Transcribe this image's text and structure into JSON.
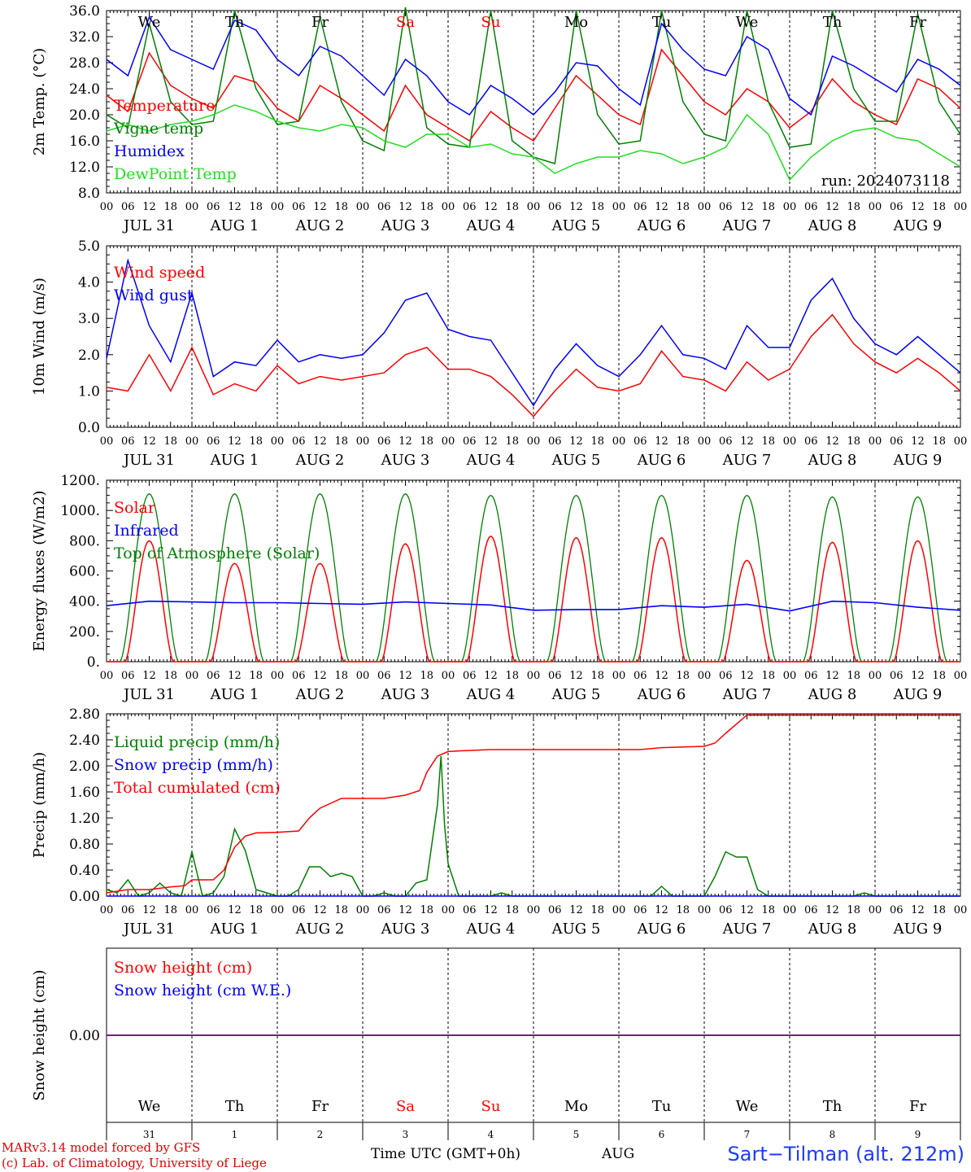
{
  "run_label": "run: 2024073118",
  "days": [
    "We",
    "Th",
    "Fr",
    "Sa",
    "Su",
    "Mo",
    "Tu",
    "We",
    "Th",
    "Fr"
  ],
  "weekend_days": [
    "Sa",
    "Su"
  ],
  "hour_ticks": [
    "00",
    "06",
    "12",
    "18"
  ],
  "date_labels": [
    "JUL 31",
    "AUG  1",
    "AUG  2",
    "AUG  3",
    "AUG  4",
    "AUG  5",
    "AUG  6",
    "AUG  7",
    "AUG  8",
    "AUG  9"
  ],
  "bottom_day_numbers": [
    "31",
    "1",
    "2",
    "3",
    "4",
    "5",
    "6",
    "7",
    "8",
    "9"
  ],
  "footer": {
    "model": "MARv3.14 model forced by GFS",
    "credit": "(c) Lab. of Climatology, University of Liege",
    "xlabel": "Time UTC (GMT+0h)",
    "month": "AUG",
    "site": "Sart−Tilman (alt. 212m)"
  },
  "colors": {
    "red": "#ff0000",
    "green": "#008000",
    "blue": "#0000ff",
    "lightgreen": "#22dd22",
    "purple": "#800080"
  },
  "chart_data": [
    {
      "type": "line",
      "ylabel": "2m Temp. (°C)",
      "ylim": [
        8,
        36
      ],
      "yticks": [
        8,
        12,
        16,
        20,
        24,
        28,
        32,
        36
      ],
      "ytick_labels": [
        "8.0",
        "12.0",
        "16.0",
        "20.0",
        "24.0",
        "28.0",
        "32.0",
        "36.0"
      ],
      "x_unit": "hours since Jul 31 00 UTC",
      "xlim": [
        0,
        240
      ],
      "grid": false,
      "legend_position": "bottom-left",
      "series": [
        {
          "name": "Temperature",
          "color": "#ff0000",
          "x": [
            0,
            6,
            12,
            18,
            24,
            30,
            36,
            42,
            48,
            54,
            60,
            66,
            72,
            78,
            84,
            90,
            96,
            102,
            108,
            114,
            120,
            126,
            132,
            138,
            144,
            150,
            156,
            162,
            168,
            174,
            180,
            186,
            192,
            198,
            204,
            210,
            216,
            222,
            228,
            234,
            240
          ],
          "y": [
            23.0,
            20.5,
            29.5,
            24.5,
            22.5,
            21.0,
            26.0,
            25.0,
            21.0,
            19.0,
            24.5,
            22.5,
            20.0,
            17.5,
            24.5,
            20.0,
            18.0,
            16.0,
            20.5,
            18.0,
            16.0,
            21.0,
            26.0,
            23.0,
            20.0,
            18.5,
            30.0,
            26.0,
            22.0,
            20.0,
            24.0,
            22.0,
            18.0,
            20.5,
            25.5,
            22.0,
            20.0,
            18.5,
            25.5,
            24.0,
            21.0
          ]
        },
        {
          "name": "Vigne temp",
          "color": "#008000",
          "x": [
            0,
            6,
            12,
            18,
            24,
            30,
            36,
            42,
            48,
            54,
            60,
            66,
            72,
            78,
            84,
            90,
            96,
            102,
            108,
            114,
            120,
            126,
            132,
            138,
            144,
            150,
            156,
            162,
            168,
            174,
            180,
            186,
            192,
            198,
            204,
            210,
            216,
            222,
            228,
            234,
            240
          ],
          "y": [
            20.0,
            18.0,
            34.0,
            22.0,
            18.5,
            19.0,
            36.0,
            24.0,
            18.5,
            19.0,
            35.0,
            22.0,
            16.0,
            14.5,
            36.5,
            18.0,
            15.5,
            15.0,
            36.0,
            16.0,
            13.5,
            12.5,
            36.0,
            20.0,
            15.5,
            16.0,
            36.0,
            22.0,
            17.0,
            16.0,
            36.0,
            22.0,
            15.0,
            15.5,
            36.0,
            24.0,
            19.0,
            19.0,
            35.5,
            22.0,
            17.0
          ]
        },
        {
          "name": "Humidex",
          "color": "#0000ff",
          "x": [
            0,
            6,
            12,
            18,
            24,
            30,
            36,
            42,
            48,
            54,
            60,
            66,
            72,
            78,
            84,
            90,
            96,
            102,
            108,
            114,
            120,
            126,
            132,
            138,
            144,
            150,
            156,
            162,
            168,
            174,
            180,
            186,
            192,
            198,
            204,
            210,
            216,
            222,
            228,
            234,
            240
          ],
          "y": [
            28.5,
            26.0,
            35.0,
            30.0,
            28.5,
            27.0,
            34.5,
            33.0,
            28.5,
            26.0,
            30.5,
            29.0,
            26.0,
            23.0,
            28.5,
            26.0,
            22.0,
            20.0,
            24.5,
            22.5,
            20.0,
            23.5,
            28.0,
            27.5,
            24.0,
            21.5,
            34.0,
            30.0,
            27.0,
            26.0,
            32.0,
            30.0,
            22.5,
            20.0,
            29.0,
            27.5,
            25.5,
            23.5,
            28.5,
            27.0,
            24.5
          ]
        },
        {
          "name": "DewPoint Temp",
          "color": "#22dd22",
          "x": [
            0,
            6,
            12,
            18,
            24,
            30,
            36,
            42,
            48,
            54,
            60,
            66,
            72,
            78,
            84,
            90,
            96,
            102,
            108,
            114,
            120,
            126,
            132,
            138,
            144,
            150,
            156,
            162,
            168,
            174,
            180,
            186,
            192,
            198,
            204,
            210,
            216,
            222,
            228,
            234,
            240
          ],
          "y": [
            17.5,
            18.5,
            17.5,
            18.5,
            19.0,
            20.0,
            21.5,
            20.5,
            19.0,
            18.0,
            17.5,
            18.5,
            18.0,
            16.0,
            15.0,
            17.0,
            17.0,
            15.0,
            15.5,
            14.0,
            13.5,
            11.0,
            12.5,
            13.5,
            13.5,
            14.5,
            14.0,
            12.5,
            13.5,
            15.0,
            20.0,
            17.0,
            10.0,
            13.5,
            16.0,
            17.5,
            18.0,
            16.5,
            16.0,
            14.0,
            12.0
          ]
        }
      ]
    },
    {
      "type": "line",
      "ylabel": "10m Wind (m/s)",
      "ylim": [
        0,
        5
      ],
      "yticks": [
        0,
        1,
        2,
        3,
        4,
        5
      ],
      "ytick_labels": [
        "0.0",
        "1.0",
        "2.0",
        "3.0",
        "4.0",
        "5.0"
      ],
      "xlim": [
        0,
        240
      ],
      "grid": false,
      "legend_position": "top-left",
      "series": [
        {
          "name": "Wind speed",
          "color": "#ff0000",
          "x": [
            0,
            6,
            12,
            18,
            24,
            30,
            36,
            42,
            48,
            54,
            60,
            66,
            72,
            78,
            84,
            90,
            96,
            102,
            108,
            114,
            120,
            126,
            132,
            138,
            144,
            150,
            156,
            162,
            168,
            174,
            180,
            186,
            192,
            198,
            204,
            210,
            216,
            222,
            228,
            234,
            240
          ],
          "y": [
            1.1,
            1.0,
            2.0,
            1.0,
            2.2,
            0.9,
            1.2,
            1.0,
            1.7,
            1.2,
            1.4,
            1.3,
            1.4,
            1.5,
            2.0,
            2.2,
            1.6,
            1.6,
            1.4,
            0.9,
            0.3,
            1.0,
            1.6,
            1.1,
            1.0,
            1.2,
            2.1,
            1.4,
            1.3,
            1.0,
            1.8,
            1.3,
            1.6,
            2.5,
            3.1,
            2.3,
            1.8,
            1.5,
            1.9,
            1.5,
            1.0
          ]
        },
        {
          "name": "Wind gust",
          "color": "#0000ff",
          "x": [
            0,
            6,
            12,
            18,
            24,
            30,
            36,
            42,
            48,
            54,
            60,
            66,
            72,
            78,
            84,
            90,
            96,
            102,
            108,
            114,
            120,
            126,
            132,
            138,
            144,
            150,
            156,
            162,
            168,
            174,
            180,
            186,
            192,
            198,
            204,
            210,
            216,
            222,
            228,
            234,
            240
          ],
          "y": [
            1.9,
            4.6,
            2.8,
            1.8,
            3.7,
            1.4,
            1.8,
            1.7,
            2.4,
            1.8,
            2.0,
            1.9,
            2.0,
            2.6,
            3.5,
            3.7,
            2.7,
            2.5,
            2.4,
            1.5,
            0.6,
            1.6,
            2.3,
            1.7,
            1.4,
            2.0,
            2.8,
            2.0,
            1.9,
            1.6,
            2.8,
            2.2,
            2.2,
            3.5,
            4.1,
            3.0,
            2.3,
            2.0,
            2.5,
            2.0,
            1.5
          ]
        }
      ]
    },
    {
      "type": "line",
      "ylabel": "Energy fluxes (W/m2)",
      "ylim": [
        0,
        1200
      ],
      "yticks": [
        0,
        200,
        400,
        600,
        800,
        1000,
        1200
      ],
      "ytick_labels": [
        "0.",
        "200.",
        "400.",
        "600.",
        "800.",
        "1000.",
        "1200."
      ],
      "xlim": [
        0,
        240
      ],
      "grid": false,
      "legend_position": "top-left",
      "solar_peaks": {
        "hour": [
          12,
          36,
          60,
          84,
          108,
          132,
          156,
          180,
          204,
          228
        ],
        "value": [
          800,
          650,
          650,
          780,
          830,
          820,
          820,
          670,
          790,
          800
        ]
      },
      "toa_peaks": {
        "hour": [
          12,
          36,
          60,
          84,
          108,
          132,
          156,
          180,
          204,
          228
        ],
        "value": [
          1110,
          1110,
          1110,
          1110,
          1100,
          1100,
          1100,
          1100,
          1090,
          1090
        ]
      },
      "series": [
        {
          "name": "Solar",
          "color": "#ff0000"
        },
        {
          "name": "Infrared",
          "color": "#0000ff",
          "x": [
            0,
            12,
            24,
            36,
            48,
            60,
            72,
            84,
            96,
            108,
            120,
            132,
            144,
            156,
            168,
            180,
            192,
            204,
            216,
            228,
            240
          ],
          "y": [
            370,
            400,
            395,
            390,
            390,
            385,
            380,
            395,
            385,
            375,
            340,
            345,
            345,
            370,
            360,
            380,
            335,
            400,
            390,
            360,
            340
          ]
        },
        {
          "name": "Top of Atmosphere (Solar)",
          "color": "#008000"
        }
      ]
    },
    {
      "type": "line",
      "ylabel": "Precip (mm/h)",
      "ylim": [
        0,
        2.8
      ],
      "yticks": [
        0,
        0.4,
        0.8,
        1.2,
        1.6,
        2.0,
        2.4,
        2.8
      ],
      "ytick_labels": [
        "0.00",
        "0.40",
        "0.80",
        "1.20",
        "1.60",
        "2.00",
        "2.40",
        "2.80"
      ],
      "xlim": [
        0,
        240
      ],
      "grid": false,
      "legend_position": "top-left",
      "series": [
        {
          "name": "Liquid precip (mm/h)",
          "color": "#008000",
          "x": [
            0,
            3,
            6,
            9,
            12,
            15,
            18,
            21,
            24,
            27,
            30,
            33,
            36,
            39,
            42,
            45,
            48,
            51,
            54,
            57,
            60,
            63,
            66,
            69,
            72,
            75,
            78,
            81,
            84,
            87,
            90,
            93,
            94,
            95,
            96,
            99,
            102,
            105,
            108,
            111,
            114,
            120,
            150,
            153,
            156,
            159,
            162,
            168,
            171,
            174,
            177,
            180,
            183,
            186,
            189,
            192,
            210,
            213,
            216,
            240
          ],
          "y": [
            0.1,
            0.05,
            0.25,
            0.0,
            0.05,
            0.2,
            0.05,
            0.0,
            0.68,
            0.0,
            0.05,
            0.3,
            1.03,
            0.7,
            0.1,
            0.05,
            0.0,
            0.0,
            0.1,
            0.45,
            0.45,
            0.3,
            0.35,
            0.3,
            0.0,
            0.0,
            0.05,
            0.0,
            0.0,
            0.2,
            0.25,
            1.4,
            2.15,
            1.1,
            0.5,
            0.0,
            0.0,
            0.0,
            0.0,
            0.05,
            0.0,
            0.0,
            0.0,
            0.0,
            0.15,
            0.0,
            0.0,
            0.0,
            0.3,
            0.68,
            0.6,
            0.6,
            0.1,
            0.0,
            0.0,
            0.0,
            0.0,
            0.05,
            0.0,
            0.0
          ]
        },
        {
          "name": "Snow precip (mm/h)",
          "color": "#0000ff",
          "x": [
            0,
            240
          ],
          "y": [
            0,
            0
          ]
        },
        {
          "name": "Total cumulated (cm)",
          "color": "#ff0000",
          "x": [
            0,
            6,
            12,
            18,
            22,
            24,
            30,
            33,
            36,
            39,
            42,
            48,
            54,
            57,
            60,
            66,
            72,
            78,
            84,
            88,
            90,
            93,
            96,
            99,
            108,
            114,
            120,
            150,
            156,
            168,
            171,
            174,
            180,
            186,
            192,
            240
          ],
          "y": [
            0.05,
            0.1,
            0.1,
            0.14,
            0.16,
            0.25,
            0.25,
            0.4,
            0.75,
            0.92,
            0.97,
            0.98,
            1.0,
            1.2,
            1.35,
            1.5,
            1.5,
            1.5,
            1.55,
            1.62,
            1.9,
            2.15,
            2.22,
            2.23,
            2.25,
            2.25,
            2.25,
            2.25,
            2.28,
            2.3,
            2.35,
            2.5,
            2.78,
            2.78,
            2.78,
            2.78
          ]
        }
      ]
    },
    {
      "type": "line",
      "ylabel": "Snow height (cm)",
      "ylim": [
        -1,
        1
      ],
      "yticks": [
        0
      ],
      "ytick_labels": [
        "0.00"
      ],
      "xlim": [
        0,
        240
      ],
      "grid": false,
      "legend_position": "top-left",
      "series": [
        {
          "name": "Snow height (cm)",
          "color": "#ff0000",
          "x": [
            0,
            240
          ],
          "y": [
            0,
            0
          ]
        },
        {
          "name": "Snow height (cm W.E.)",
          "color": "#0000ff",
          "x": [
            0,
            240
          ],
          "y": [
            0,
            0
          ]
        }
      ]
    }
  ]
}
